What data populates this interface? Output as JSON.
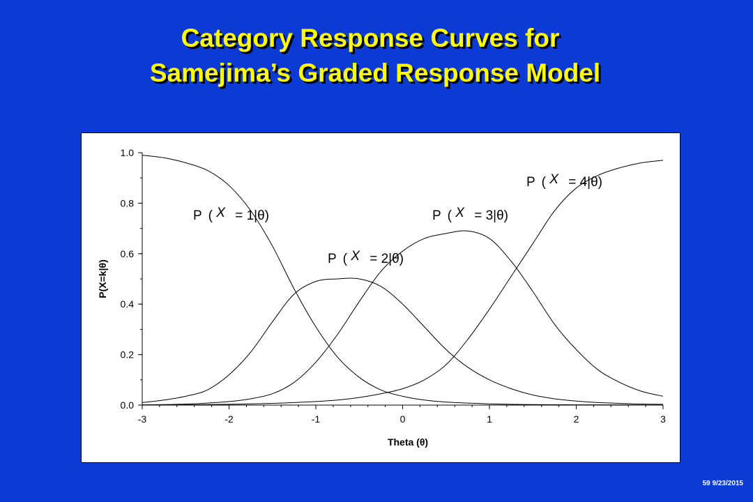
{
  "slide": {
    "title_line1": "Category Response Curves for",
    "title_line2": "Samejima’s Graded Response Model",
    "footer": "59 9/23/2015",
    "background_color": "#0b3ad4",
    "title_color": "#ffff00"
  },
  "chart_data": {
    "type": "line",
    "xlabel": "Theta (θ)",
    "ylabel": "P(X=k|θ)",
    "xlim": [
      -3,
      3
    ],
    "ylim": [
      0,
      1
    ],
    "x_ticks": [
      "-3",
      "-2",
      "-1",
      "0",
      "1",
      "2",
      "3"
    ],
    "y_ticks": [
      "0.0",
      "0.2",
      "0.4",
      "0.6",
      "0.8",
      "1.0"
    ],
    "x": [
      -3,
      -2.75,
      -2.5,
      -2.25,
      -2,
      -1.75,
      -1.5,
      -1.25,
      -1,
      -0.75,
      -0.5,
      -0.25,
      0,
      0.25,
      0.5,
      0.75,
      1,
      1.25,
      1.5,
      1.75,
      2,
      2.25,
      2.5,
      2.75,
      3
    ],
    "series": [
      {
        "name": "P(X = 1|θ)",
        "values": [
          0.99,
          0.98,
          0.96,
          0.93,
          0.87,
          0.77,
          0.63,
          0.46,
          0.31,
          0.19,
          0.11,
          0.06,
          0.035,
          0.02,
          0.012,
          0.008,
          0.005,
          0.003,
          0.002,
          0.0015,
          0.001,
          0.001,
          0.001,
          0.0005,
          0.0005
        ]
      },
      {
        "name": "P(X = 2|θ)",
        "values": [
          0.01,
          0.02,
          0.035,
          0.06,
          0.12,
          0.21,
          0.33,
          0.44,
          0.49,
          0.5,
          0.5,
          0.47,
          0.4,
          0.31,
          0.22,
          0.15,
          0.1,
          0.065,
          0.04,
          0.025,
          0.016,
          0.01,
          0.007,
          0.004,
          0.003
        ]
      },
      {
        "name": "P(X = 3|θ)",
        "values": [
          0.001,
          0.002,
          0.004,
          0.008,
          0.014,
          0.025,
          0.045,
          0.09,
          0.17,
          0.28,
          0.41,
          0.53,
          0.61,
          0.66,
          0.68,
          0.69,
          0.66,
          0.57,
          0.45,
          0.32,
          0.22,
          0.14,
          0.09,
          0.055,
          0.035
        ]
      },
      {
        "name": "P(X = 4|θ)",
        "values": [
          0.0,
          0.0,
          0.001,
          0.002,
          0.003,
          0.005,
          0.007,
          0.01,
          0.014,
          0.02,
          0.03,
          0.045,
          0.065,
          0.1,
          0.16,
          0.26,
          0.38,
          0.51,
          0.64,
          0.77,
          0.86,
          0.91,
          0.94,
          0.96,
          0.97
        ]
      }
    ],
    "label_parts": {
      "p": "P",
      "open": "(",
      "x": "X",
      "eq1": "= 1|θ)",
      "eq2": "= 2|θ)",
      "eq3": "= 3|θ)",
      "eq4": "= 4|θ)"
    },
    "grid": false,
    "legend": "none"
  }
}
